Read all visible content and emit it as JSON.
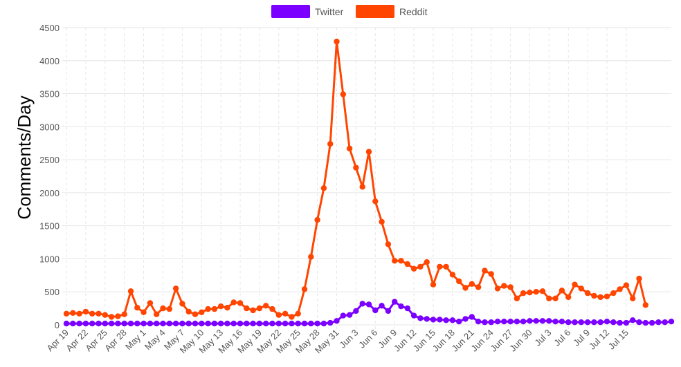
{
  "chart_data": {
    "type": "line",
    "title": "",
    "xlabel": "",
    "ylabel": "Comments/Day",
    "ylim": [
      0,
      4500
    ],
    "yticks": [
      0,
      500,
      1000,
      1500,
      2000,
      2500,
      3000,
      3500,
      4000,
      4500
    ],
    "grid": true,
    "legend_position": "top-center",
    "tick_labels": [
      "Apr 19",
      "Apr 22",
      "Apr 25",
      "Apr 28",
      "May 1",
      "May 4",
      "May 7",
      "May 10",
      "May 13",
      "May 16",
      "May 19",
      "May 22",
      "May 25",
      "May 28",
      "May 31",
      "Jun 3",
      "Jun 6",
      "Jun 9",
      "Jun 12",
      "Jun 15",
      "Jun 18",
      "Jun 21",
      "Jun 24",
      "Jun 27",
      "Jun 30",
      "Jul 3",
      "Jul 6",
      "Jul 9",
      "Jul 12",
      "Jul 15"
    ],
    "series": [
      {
        "name": "Twitter",
        "color": "#7B00FF",
        "values": [
          20,
          20,
          20,
          20,
          20,
          20,
          20,
          20,
          20,
          20,
          20,
          20,
          20,
          20,
          20,
          20,
          20,
          20,
          20,
          20,
          20,
          20,
          20,
          20,
          20,
          20,
          20,
          20,
          20,
          20,
          20,
          20,
          20,
          20,
          20,
          20,
          20,
          20,
          20,
          20,
          20,
          30,
          60,
          140,
          150,
          210,
          320,
          310,
          220,
          290,
          210,
          350,
          280,
          250,
          140,
          100,
          90,
          80,
          80,
          70,
          70,
          50,
          90,
          120,
          50,
          40,
          40,
          50,
          50,
          50,
          50,
          50,
          60,
          60,
          60,
          60,
          50,
          50,
          40,
          40,
          40,
          40,
          40,
          40,
          50,
          40,
          30,
          30,
          70,
          40,
          30,
          30,
          40,
          40,
          50
        ]
      },
      {
        "name": "Reddit",
        "color": "#FF4500",
        "values": [
          170,
          180,
          170,
          200,
          170,
          170,
          150,
          120,
          130,
          160,
          510,
          260,
          190,
          330,
          160,
          250,
          240,
          550,
          320,
          200,
          160,
          190,
          240,
          240,
          280,
          260,
          340,
          330,
          250,
          220,
          250,
          290,
          240,
          150,
          170,
          120,
          170,
          540,
          1030,
          1590,
          2070,
          2740,
          4290,
          3490,
          2670,
          2380,
          2090,
          2620,
          1870,
          1560,
          1220,
          970,
          970,
          920,
          850,
          880,
          950,
          610,
          880,
          880,
          760,
          660,
          560,
          620,
          570,
          820,
          770,
          550,
          590,
          570,
          400,
          480,
          490,
          500,
          510,
          400,
          400,
          520,
          420,
          610,
          550,
          480,
          440,
          420,
          430,
          480,
          540,
          600,
          400,
          700,
          300
        ]
      }
    ]
  }
}
